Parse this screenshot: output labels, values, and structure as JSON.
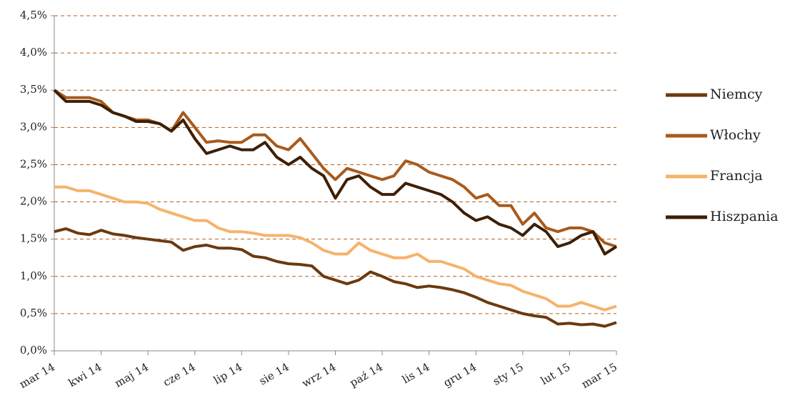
{
  "chart_data": {
    "type": "line",
    "categories": [
      "mar 14",
      null,
      null,
      null,
      "kwi 14",
      null,
      null,
      null,
      "maj 14",
      null,
      null,
      null,
      "cze 14",
      null,
      null,
      null,
      "lip 14",
      null,
      null,
      null,
      "sie 14",
      null,
      null,
      null,
      "wrz 14",
      null,
      null,
      null,
      "paź 14",
      null,
      null,
      null,
      "lis 14",
      null,
      null,
      null,
      "gru 14",
      null,
      null,
      null,
      "sty 15",
      null,
      null,
      null,
      "lut 15",
      null,
      null,
      null,
      "mar 15"
    ],
    "series": [
      {
        "name": "Niemcy",
        "color": "#6b3a0f",
        "values": [
          1.6,
          1.64,
          1.58,
          1.56,
          1.62,
          1.57,
          1.55,
          1.52,
          1.5,
          1.48,
          1.46,
          1.35,
          1.4,
          1.42,
          1.38,
          1.38,
          1.36,
          1.27,
          1.25,
          1.2,
          1.17,
          1.16,
          1.14,
          1.0,
          0.95,
          0.9,
          0.95,
          1.06,
          1.0,
          0.93,
          0.9,
          0.85,
          0.87,
          0.85,
          0.82,
          0.78,
          0.72,
          0.65,
          0.6,
          0.55,
          0.5,
          0.47,
          0.45,
          0.36,
          0.37,
          0.35,
          0.36,
          0.33,
          0.38
        ]
      },
      {
        "name": "Włochy",
        "color": "#a85a1c",
        "values": [
          3.5,
          3.4,
          3.4,
          3.4,
          3.35,
          3.2,
          3.15,
          3.1,
          3.1,
          3.05,
          2.95,
          3.2,
          3.0,
          2.8,
          2.82,
          2.8,
          2.8,
          2.9,
          2.9,
          2.75,
          2.7,
          2.85,
          2.65,
          2.45,
          2.3,
          2.45,
          2.4,
          2.35,
          2.3,
          2.35,
          2.55,
          2.5,
          2.4,
          2.35,
          2.3,
          2.2,
          2.05,
          2.1,
          1.95,
          1.95,
          1.7,
          1.85,
          1.65,
          1.6,
          1.65,
          1.65,
          1.6,
          1.45,
          1.4
        ]
      },
      {
        "name": "Francja",
        "color": "#f6b36a",
        "values": [
          2.2,
          2.2,
          2.15,
          2.15,
          2.1,
          2.05,
          2.0,
          2.0,
          1.98,
          1.9,
          1.85,
          1.8,
          1.75,
          1.75,
          1.65,
          1.6,
          1.6,
          1.58,
          1.55,
          1.55,
          1.55,
          1.52,
          1.45,
          1.35,
          1.3,
          1.3,
          1.45,
          1.35,
          1.3,
          1.25,
          1.25,
          1.3,
          1.2,
          1.2,
          1.15,
          1.1,
          1.0,
          0.95,
          0.9,
          0.88,
          0.8,
          0.75,
          0.7,
          0.6,
          0.6,
          0.65,
          0.6,
          0.55,
          0.6
        ]
      },
      {
        "name": "Hiszpania",
        "color": "#3d1f05",
        "values": [
          3.5,
          3.35,
          3.35,
          3.35,
          3.3,
          3.2,
          3.15,
          3.08,
          3.08,
          3.05,
          2.95,
          3.1,
          2.85,
          2.65,
          2.7,
          2.75,
          2.7,
          2.7,
          2.8,
          2.6,
          2.5,
          2.6,
          2.45,
          2.35,
          2.05,
          2.3,
          2.35,
          2.2,
          2.1,
          2.1,
          2.25,
          2.2,
          2.15,
          2.1,
          2.0,
          1.85,
          1.75,
          1.8,
          1.7,
          1.65,
          1.55,
          1.7,
          1.6,
          1.4,
          1.45,
          1.55,
          1.6,
          1.3,
          1.4
        ]
      }
    ],
    "ylim": [
      0,
      4.5
    ],
    "yticks": [
      {
        "value": 0,
        "label": "0,0%"
      },
      {
        "value": 0.5,
        "label": "0,5%"
      },
      {
        "value": 1,
        "label": "1,0%"
      },
      {
        "value": 1.5,
        "label": "1,5%"
      },
      {
        "value": 2,
        "label": "2,0%"
      },
      {
        "value": 2.5,
        "label": "2,5%"
      },
      {
        "value": 3,
        "label": "3,0%"
      },
      {
        "value": 3.5,
        "label": "3,5%"
      },
      {
        "value": 4,
        "label": "4,0%"
      },
      {
        "value": 4.5,
        "label": "4,5%"
      }
    ],
    "grid": true,
    "legend": "right"
  }
}
